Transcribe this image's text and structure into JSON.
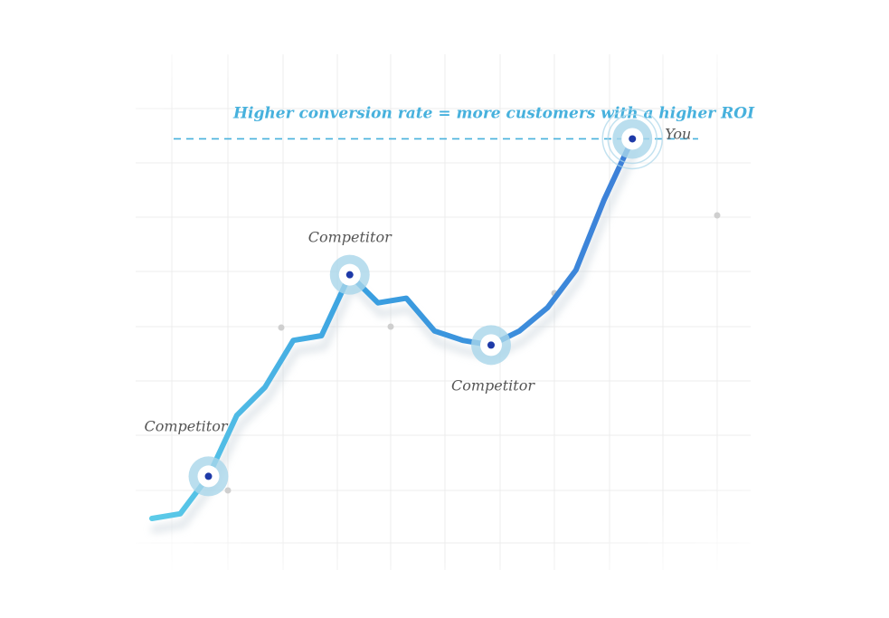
{
  "headline": "Higher conversion rate = more customers with a higher ROI",
  "colors": {
    "line": "#3a9fe0",
    "line_end": "#3d7fd8",
    "line_start": "#5ccbe8",
    "marker_halo": "#a9d6ea",
    "marker_dot": "#1e3aa8",
    "headline": "#47b1dd",
    "dashed": "#47b1dd",
    "grid": "#ececec",
    "label": "#555555"
  },
  "chart_data": {
    "type": "line",
    "title": "",
    "xlabel": "",
    "ylabel": "",
    "grid": true,
    "xlim": [
      0,
      20
    ],
    "ylim": [
      0,
      10
    ],
    "series": [
      {
        "values": [
          [
            0,
            1.1
          ],
          [
            1,
            1.2
          ],
          [
            2,
            2.0
          ],
          [
            3,
            3.3
          ],
          [
            4,
            3.9
          ],
          [
            5,
            4.9
          ],
          [
            6,
            5.0
          ],
          [
            7,
            6.3
          ],
          [
            8,
            5.7
          ],
          [
            9,
            5.8
          ],
          [
            10,
            5.1
          ],
          [
            11,
            4.9
          ],
          [
            12,
            4.8
          ],
          [
            13,
            5.1
          ],
          [
            14,
            5.6
          ],
          [
            15,
            6.4
          ],
          [
            16,
            7.9
          ],
          [
            17,
            9.2
          ]
        ]
      }
    ],
    "markers": [
      {
        "x": 2,
        "y": 2.0,
        "label": "Competitor",
        "label_pos": "above-left"
      },
      {
        "x": 7,
        "y": 6.3,
        "label": "Competitor",
        "label_pos": "above"
      },
      {
        "x": 12,
        "y": 4.8,
        "label": "Competitor",
        "label_pos": "below"
      },
      {
        "x": 17,
        "y": 9.2,
        "label": "You",
        "label_pos": "right"
      }
    ],
    "reference_line": {
      "y": 9.2,
      "style": "dashed"
    }
  }
}
